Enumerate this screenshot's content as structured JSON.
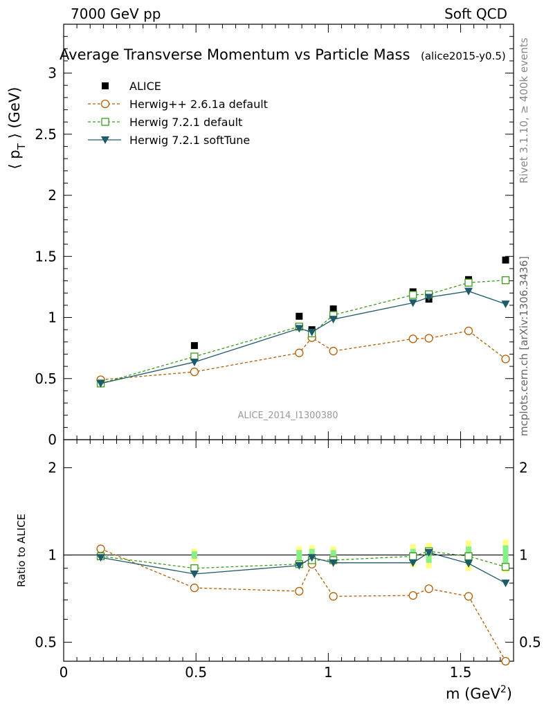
{
  "header": {
    "left": "7000 GeV pp",
    "right": "Soft QCD",
    "title": "Average Transverse Momentum vs Particle Mass",
    "tag": "(alice2015-y0.5)",
    "side_top": "Rivet 3.1.10, ≥ 400k events",
    "side_bottom": "mcplots.cern.ch [arXiv:1306.3436]",
    "analysis": "ALICE_2014_I1300380"
  },
  "colors": {
    "data": "#000000",
    "herwigpp": "#b35c00",
    "herwig_default": "#3a9a1a",
    "herwig_soft": "#1f5a6b",
    "band_yellow": "#ffff80",
    "band_green": "#88ee88"
  },
  "chart_data": [
    {
      "type": "scatter",
      "panel": "main",
      "title": "Average Transverse Momentum vs Particle Mass",
      "xlabel": "m (GeV",
      "xlabel_sup": "2",
      "xlabel_close": ")",
      "ylabel_main": "⟨ p",
      "ylabel_sub": "T",
      "ylabel_end": " ⟩ (GeV)",
      "xlim": [
        0,
        1.7
      ],
      "ylim": [
        0,
        3.4
      ],
      "x_ticks": [
        0,
        0.5,
        1,
        1.5
      ],
      "x_tick_labels": [
        "0",
        "0.5",
        "1",
        "1.5"
      ],
      "y_ticks": [
        0,
        0.5,
        1,
        1.5,
        2,
        2.5,
        3
      ],
      "y_tick_labels": [
        "0",
        "0.5",
        "1",
        "1.5",
        "2",
        "2.5",
        "3"
      ],
      "legend": "top-left",
      "x": [
        0.14,
        0.494,
        0.89,
        0.938,
        1.019,
        1.32,
        1.38,
        1.53,
        1.67
      ],
      "series": [
        {
          "name": "ALICE",
          "marker": "square-filled",
          "values": [
            0.46,
            0.77,
            1.01,
            0.9,
            1.07,
            1.21,
            1.15,
            1.31,
            1.47
          ]
        },
        {
          "name": "Herwig++ 2.6.1a default",
          "marker": "circle-open",
          "dashed": true,
          "values": [
            0.49,
            0.555,
            0.71,
            0.835,
            0.725,
            0.825,
            0.83,
            0.89,
            0.66
          ]
        },
        {
          "name": "Herwig 7.2.1 default",
          "marker": "square-open",
          "dashed": true,
          "values": [
            0.46,
            0.68,
            0.925,
            0.87,
            1.02,
            1.185,
            1.19,
            1.285,
            1.305
          ]
        },
        {
          "name": "Herwig 7.2.1 softTune",
          "marker": "triangle-down-filled",
          "dashed": false,
          "values": [
            0.46,
            0.635,
            0.91,
            0.88,
            0.985,
            1.12,
            1.165,
            1.215,
            1.11
          ]
        }
      ]
    },
    {
      "type": "scatter",
      "panel": "ratio",
      "ylabel": "Ratio to ALICE",
      "xlim": [
        0,
        1.7
      ],
      "ylim": [
        0.43,
        2.5
      ],
      "yscale": "log",
      "y_ticks": [
        0.5,
        1,
        2
      ],
      "y_tick_labels": [
        "0.5",
        "1",
        "2"
      ],
      "x": [
        0.14,
        0.494,
        0.89,
        0.938,
        1.019,
        1.32,
        1.38,
        1.53,
        1.67
      ],
      "band_yellow": [
        0.02,
        0.05,
        0.07,
        0.08,
        0.07,
        0.09,
        0.1,
        0.12,
        0.13
      ],
      "band_green": [
        0.01,
        0.03,
        0.04,
        0.05,
        0.04,
        0.05,
        0.06,
        0.07,
        0.08
      ],
      "series": [
        {
          "name": "Herwig++ 2.6.1a default",
          "values": [
            1.05,
            0.77,
            0.75,
            0.93,
            0.72,
            0.725,
            0.765,
            0.72,
            0.43
          ]
        },
        {
          "name": "Herwig 7.2.1 default",
          "values": [
            0.99,
            0.9,
            0.93,
            0.96,
            0.96,
            0.99,
            1.03,
            0.99,
            0.91
          ]
        },
        {
          "name": "Herwig 7.2.1 softTune",
          "values": [
            0.98,
            0.86,
            0.92,
            0.98,
            0.94,
            0.94,
            1.02,
            0.935,
            0.8
          ]
        }
      ]
    }
  ]
}
